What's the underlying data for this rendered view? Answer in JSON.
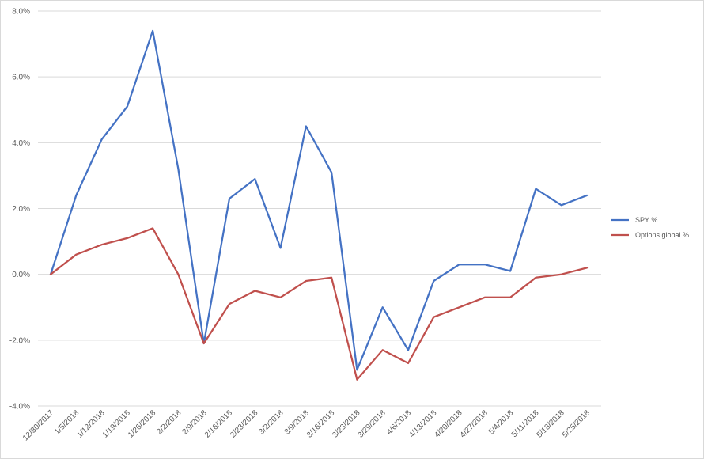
{
  "chart_data": {
    "type": "line",
    "title": "",
    "xlabel": "",
    "ylabel": "",
    "categories": [
      "12/30/2017",
      "1/5/2018",
      "1/12/2018",
      "1/19/2018",
      "1/26/2018",
      "2/2/2018",
      "2/9/2018",
      "2/16/2018",
      "2/23/2018",
      "3/2/2018",
      "3/9/2018",
      "3/16/2018",
      "3/23/2018",
      "3/29/2018",
      "4/6/2018",
      "4/13/2018",
      "4/20/2018",
      "4/27/2018",
      "5/4/2018",
      "5/11/2018",
      "5/18/2018",
      "5/25/2018"
    ],
    "y_ticks": [
      "-4.0%",
      "-2.0%",
      "0.0%",
      "2.0%",
      "4.0%",
      "6.0%",
      "8.0%"
    ],
    "ylim": [
      -4,
      8
    ],
    "grid": true,
    "legend_position": "right",
    "series": [
      {
        "name": "SPY %",
        "color": "#4472c4",
        "values": [
          0.0,
          2.4,
          4.1,
          5.1,
          7.4,
          3.2,
          -2.1,
          2.3,
          2.9,
          0.8,
          4.5,
          3.1,
          -2.9,
          -1.0,
          -2.3,
          -0.2,
          0.3,
          0.3,
          0.1,
          2.6,
          2.1,
          2.4
        ]
      },
      {
        "name": "Options global %",
        "color": "#c0504d",
        "values": [
          0.0,
          0.6,
          0.9,
          1.1,
          1.4,
          0.0,
          -2.1,
          -0.9,
          -0.5,
          -0.7,
          -0.2,
          -0.1,
          -3.2,
          -2.3,
          -2.7,
          -1.3,
          -1.0,
          -0.7,
          -0.7,
          -0.1,
          0.0,
          0.2
        ]
      }
    ]
  }
}
